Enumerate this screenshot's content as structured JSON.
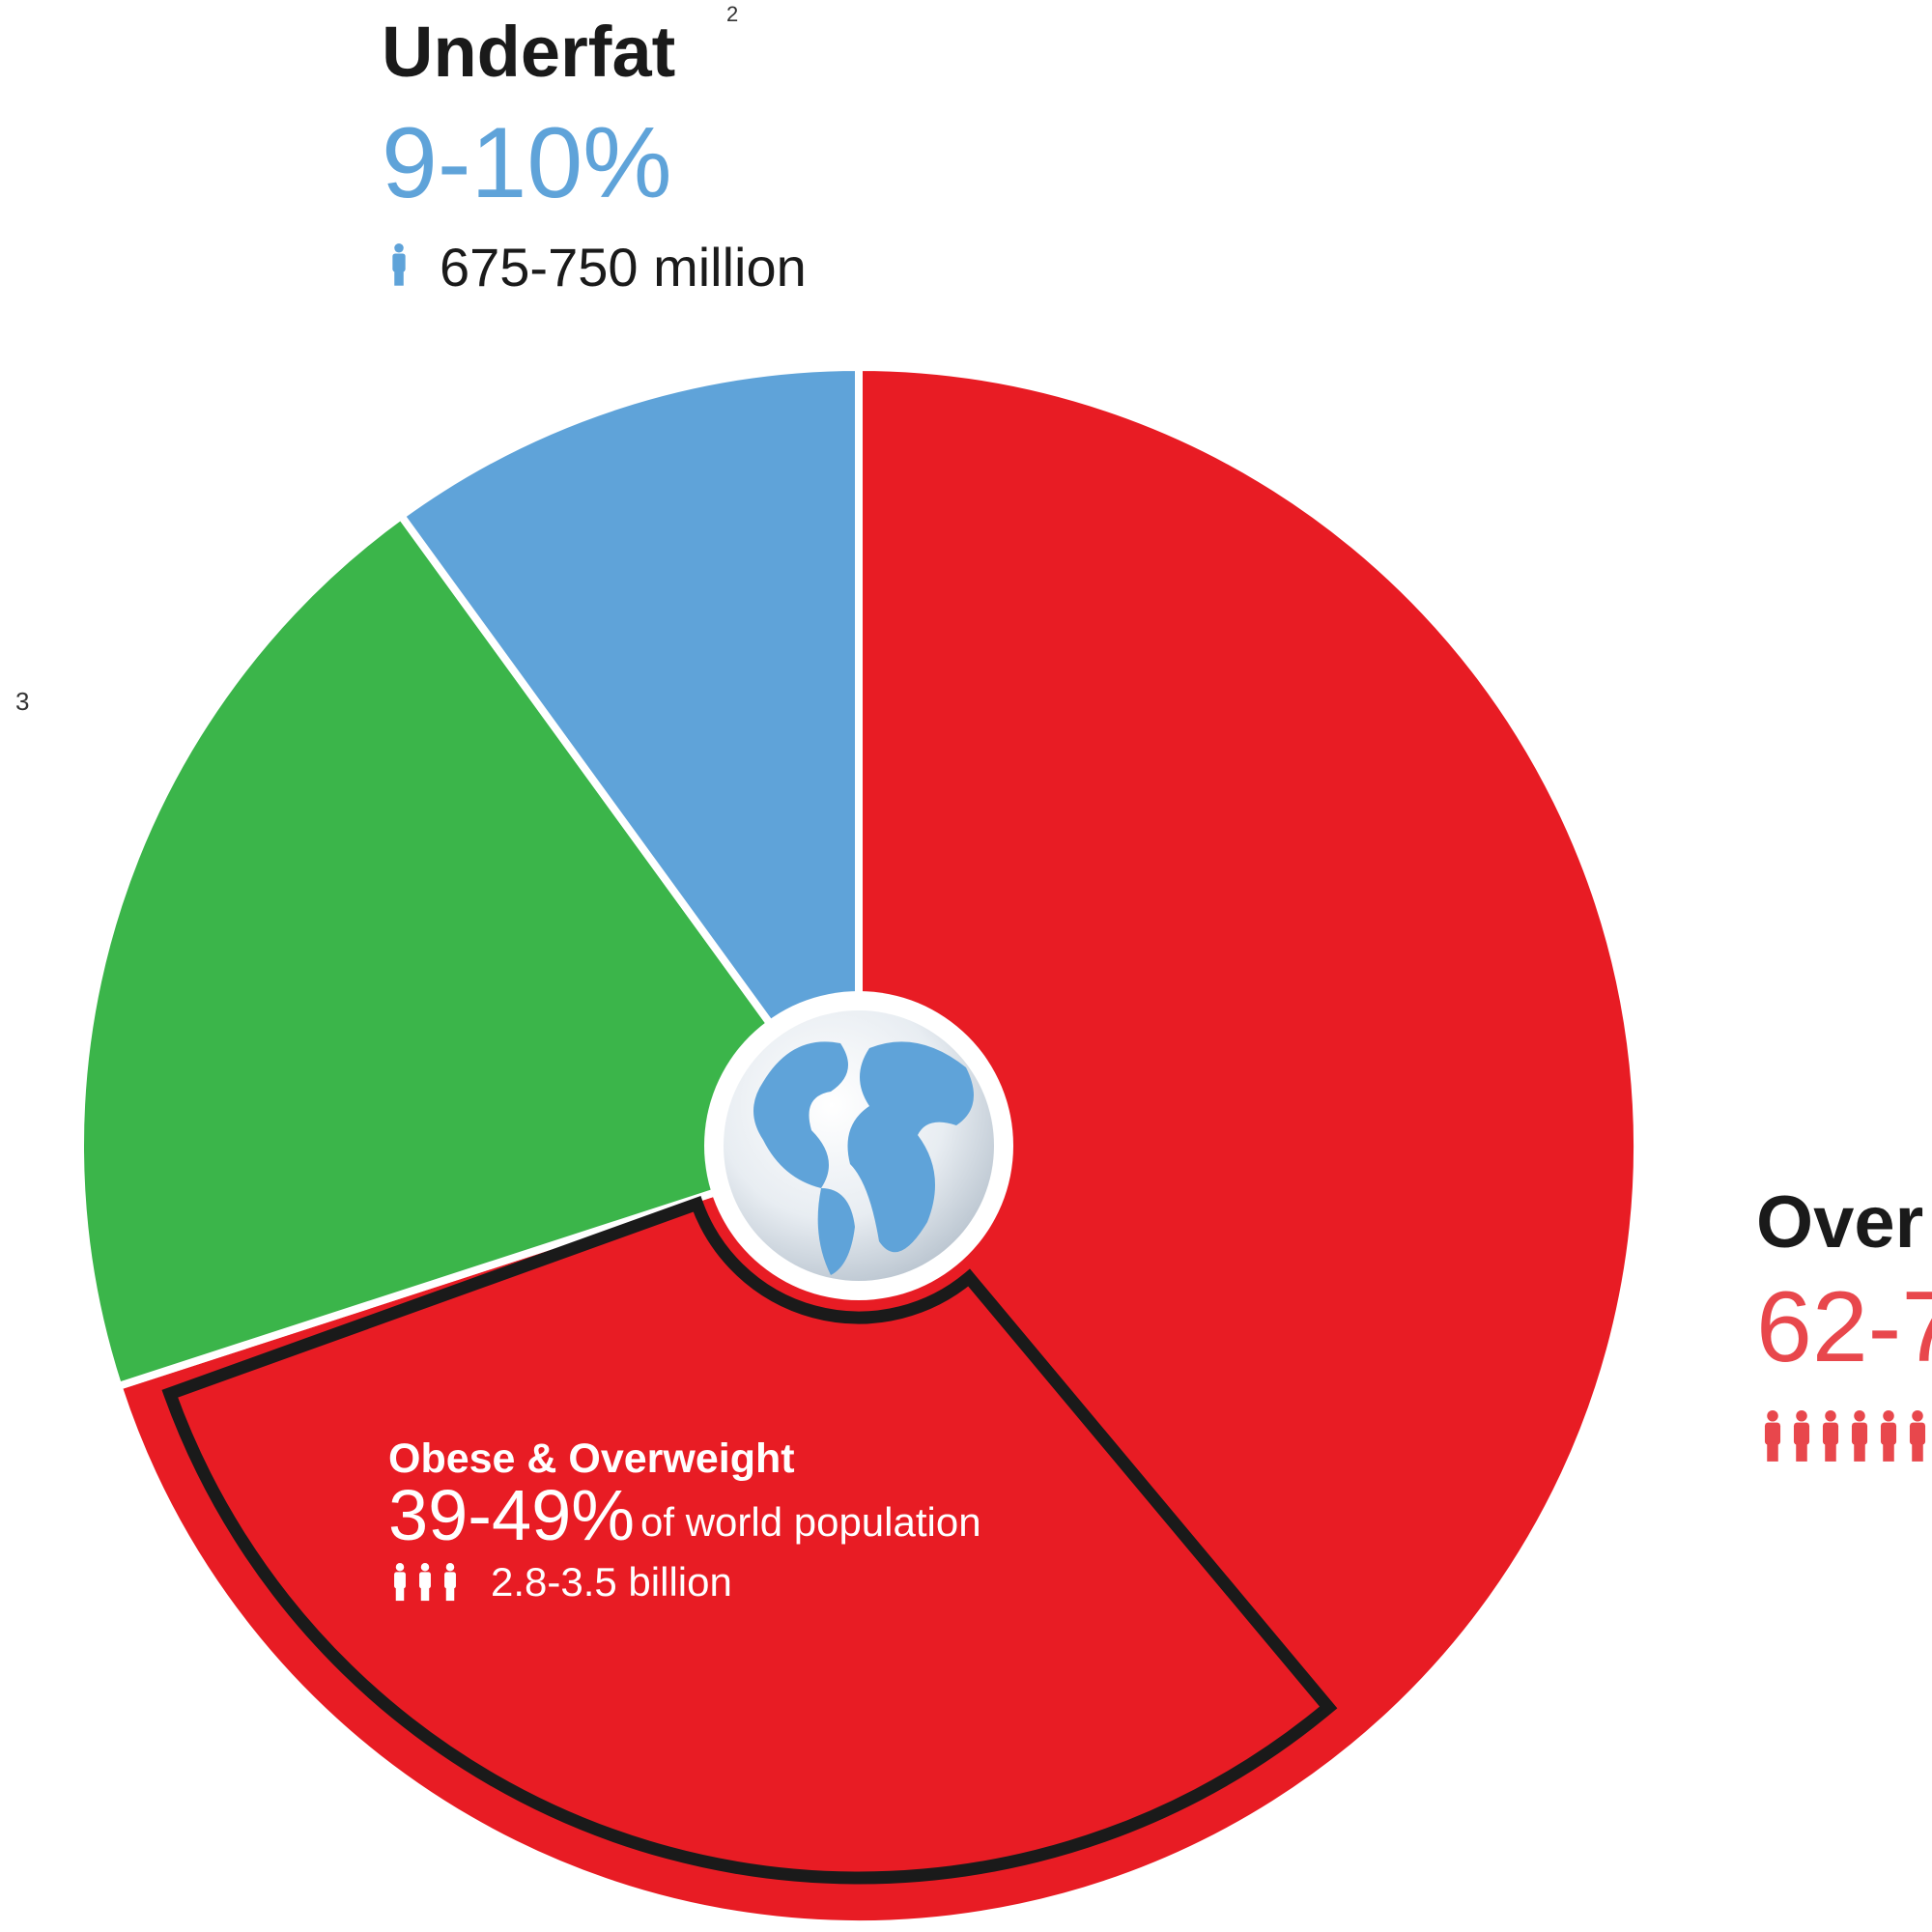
{
  "chart_data": {
    "type": "pie",
    "categories": [
      "Over",
      null,
      "Underfat"
    ],
    "values": [
      70,
      20,
      10
    ],
    "colors": [
      "#e81c24",
      "#3bb54a",
      "#5fa3d9"
    ],
    "notes": {
      "underfat": "2",
      "middle": "3"
    },
    "underfat_range": "9-10%",
    "underfat_count": "675-750 million",
    "over_range": "62-7",
    "highlight": {
      "title": "Obese & Overweight",
      "range": "39-49%",
      "suffix": "of world population",
      "count": "2.8-3.5 billion",
      "value": 31.5
    }
  }
}
